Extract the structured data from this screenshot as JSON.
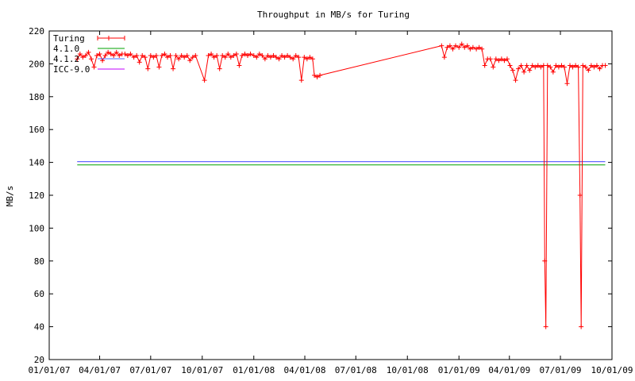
{
  "chart_data": {
    "type": "line",
    "title": "Throughput in MB/s for Turing",
    "ylabel": "MB/s",
    "xlabel": "",
    "ylim": [
      20,
      220
    ],
    "yticks": [
      20,
      40,
      60,
      80,
      100,
      120,
      140,
      160,
      180,
      200,
      220
    ],
    "xlim": [
      "2007-01-01",
      "2009-10-01"
    ],
    "xticks": [
      "01/01/07",
      "04/01/07",
      "07/01/07",
      "10/01/07",
      "01/01/08",
      "04/01/08",
      "07/01/08",
      "10/01/08",
      "01/01/09",
      "04/01/09",
      "07/01/09",
      "10/01/09"
    ],
    "grid": false,
    "legend_position": "top-left",
    "series": [
      {
        "name": "Turing",
        "color": "#ff0000",
        "marker": "plus",
        "points": [
          [
            "2007-02-20",
            203
          ],
          [
            "2007-02-25",
            206
          ],
          [
            "2007-03-02",
            204
          ],
          [
            "2007-03-07",
            205
          ],
          [
            "2007-03-12",
            207
          ],
          [
            "2007-03-17",
            203
          ],
          [
            "2007-03-22",
            198
          ],
          [
            "2007-03-27",
            205
          ],
          [
            "2007-04-01",
            206
          ],
          [
            "2007-04-06",
            202
          ],
          [
            "2007-04-11",
            205
          ],
          [
            "2007-04-16",
            207
          ],
          [
            "2007-04-21",
            206
          ],
          [
            "2007-04-26",
            205
          ],
          [
            "2007-05-01",
            207
          ],
          [
            "2007-05-06",
            205
          ],
          [
            "2007-05-11",
            206
          ],
          [
            "2007-05-16",
            206
          ],
          [
            "2007-05-21",
            205
          ],
          [
            "2007-05-26",
            206
          ],
          [
            "2007-06-01",
            204
          ],
          [
            "2007-06-06",
            205
          ],
          [
            "2007-06-11",
            201
          ],
          [
            "2007-06-16",
            205
          ],
          [
            "2007-06-21",
            204
          ],
          [
            "2007-06-26",
            197
          ],
          [
            "2007-07-01",
            205
          ],
          [
            "2007-07-06",
            204
          ],
          [
            "2007-07-11",
            205
          ],
          [
            "2007-07-16",
            198
          ],
          [
            "2007-07-21",
            205
          ],
          [
            "2007-07-26",
            206
          ],
          [
            "2007-07-31",
            204
          ],
          [
            "2007-08-05",
            205
          ],
          [
            "2007-08-10",
            197
          ],
          [
            "2007-08-15",
            205
          ],
          [
            "2007-08-20",
            203
          ],
          [
            "2007-08-25",
            205
          ],
          [
            "2007-08-30",
            204
          ],
          [
            "2007-09-04",
            205
          ],
          [
            "2007-09-09",
            202
          ],
          [
            "2007-09-14",
            204
          ],
          [
            "2007-09-19",
            205
          ],
          [
            "2007-10-05",
            190
          ],
          [
            "2007-10-12",
            205
          ],
          [
            "2007-10-17",
            206
          ],
          [
            "2007-10-22",
            204
          ],
          [
            "2007-10-27",
            205
          ],
          [
            "2007-11-01",
            197
          ],
          [
            "2007-11-06",
            205
          ],
          [
            "2007-11-11",
            204
          ],
          [
            "2007-11-16",
            206
          ],
          [
            "2007-11-21",
            204
          ],
          [
            "2007-11-26",
            205
          ],
          [
            "2007-12-01",
            206
          ],
          [
            "2007-12-06",
            199
          ],
          [
            "2007-12-11",
            205
          ],
          [
            "2007-12-16",
            206
          ],
          [
            "2007-12-21",
            205
          ],
          [
            "2007-12-26",
            206
          ],
          [
            "2008-01-01",
            205
          ],
          [
            "2008-01-06",
            204
          ],
          [
            "2008-01-11",
            206
          ],
          [
            "2008-01-16",
            205
          ],
          [
            "2008-01-21",
            203
          ],
          [
            "2008-01-26",
            205
          ],
          [
            "2008-01-31",
            204
          ],
          [
            "2008-02-05",
            205
          ],
          [
            "2008-02-10",
            204
          ],
          [
            "2008-02-15",
            203
          ],
          [
            "2008-02-20",
            205
          ],
          [
            "2008-02-25",
            204
          ],
          [
            "2008-03-01",
            205
          ],
          [
            "2008-03-06",
            204
          ],
          [
            "2008-03-11",
            203
          ],
          [
            "2008-03-16",
            205
          ],
          [
            "2008-03-21",
            204
          ],
          [
            "2008-03-26",
            190
          ],
          [
            "2008-03-31",
            204
          ],
          [
            "2008-04-05",
            203
          ],
          [
            "2008-04-10",
            204
          ],
          [
            "2008-04-15",
            203
          ],
          [
            "2008-04-18",
            193
          ],
          [
            "2008-04-23",
            192
          ],
          [
            "2008-04-28",
            193
          ],
          [
            "2008-12-01",
            211
          ],
          [
            "2008-12-06",
            204
          ],
          [
            "2008-12-11",
            210
          ],
          [
            "2008-12-16",
            211
          ],
          [
            "2008-12-21",
            209
          ],
          [
            "2008-12-26",
            211
          ],
          [
            "2009-01-01",
            210
          ],
          [
            "2009-01-06",
            212
          ],
          [
            "2009-01-11",
            210
          ],
          [
            "2009-01-16",
            211
          ],
          [
            "2009-01-21",
            209
          ],
          [
            "2009-01-26",
            210
          ],
          [
            "2009-02-01",
            209
          ],
          [
            "2009-02-06",
            210
          ],
          [
            "2009-02-11",
            209
          ],
          [
            "2009-02-16",
            199
          ],
          [
            "2009-02-21",
            203
          ],
          [
            "2009-02-26",
            203
          ],
          [
            "2009-03-03",
            198
          ],
          [
            "2009-03-08",
            203
          ],
          [
            "2009-03-13",
            202
          ],
          [
            "2009-03-18",
            203
          ],
          [
            "2009-03-23",
            202
          ],
          [
            "2009-03-28",
            203
          ],
          [
            "2009-04-02",
            199
          ],
          [
            "2009-04-07",
            196
          ],
          [
            "2009-04-12",
            190
          ],
          [
            "2009-04-17",
            197
          ],
          [
            "2009-04-22",
            199
          ],
          [
            "2009-04-27",
            195
          ],
          [
            "2009-05-02",
            199
          ],
          [
            "2009-05-07",
            196
          ],
          [
            "2009-05-12",
            199
          ],
          [
            "2009-05-17",
            198
          ],
          [
            "2009-05-22",
            199
          ],
          [
            "2009-05-27",
            198
          ],
          [
            "2009-06-01",
            199
          ],
          [
            "2009-06-03",
            80
          ],
          [
            "2009-06-05",
            40
          ],
          [
            "2009-06-08",
            199
          ],
          [
            "2009-06-13",
            198
          ],
          [
            "2009-06-18",
            195
          ],
          [
            "2009-06-23",
            199
          ],
          [
            "2009-06-28",
            198
          ],
          [
            "2009-07-03",
            199
          ],
          [
            "2009-07-08",
            198
          ],
          [
            "2009-07-13",
            188
          ],
          [
            "2009-07-18",
            199
          ],
          [
            "2009-07-23",
            198
          ],
          [
            "2009-07-28",
            199
          ],
          [
            "2009-08-02",
            198
          ],
          [
            "2009-08-05",
            120
          ],
          [
            "2009-08-07",
            40
          ],
          [
            "2009-08-10",
            199
          ],
          [
            "2009-08-15",
            198
          ],
          [
            "2009-08-20",
            196
          ],
          [
            "2009-08-25",
            199
          ],
          [
            "2009-08-30",
            198
          ],
          [
            "2009-09-04",
            199
          ],
          [
            "2009-09-09",
            197
          ],
          [
            "2009-09-14",
            199
          ],
          [
            "2009-09-19",
            199
          ]
        ]
      },
      {
        "name": "4.1.0",
        "color": "#00a000",
        "marker": "none",
        "points": [
          [
            "2007-02-20",
            138.5
          ],
          [
            "2009-09-19",
            138.5
          ]
        ]
      },
      {
        "name": "4.1.2",
        "color": "#5070ff",
        "marker": "none",
        "points": [
          [
            "2007-02-20",
            140.5
          ],
          [
            "2009-09-19",
            140.5
          ]
        ]
      },
      {
        "name": "ICC-9.0",
        "color": "#c000ff",
        "marker": "none",
        "points": [
          [
            "2007-02-20",
            140.5
          ],
          [
            "2009-09-19",
            140.5
          ]
        ]
      }
    ]
  }
}
